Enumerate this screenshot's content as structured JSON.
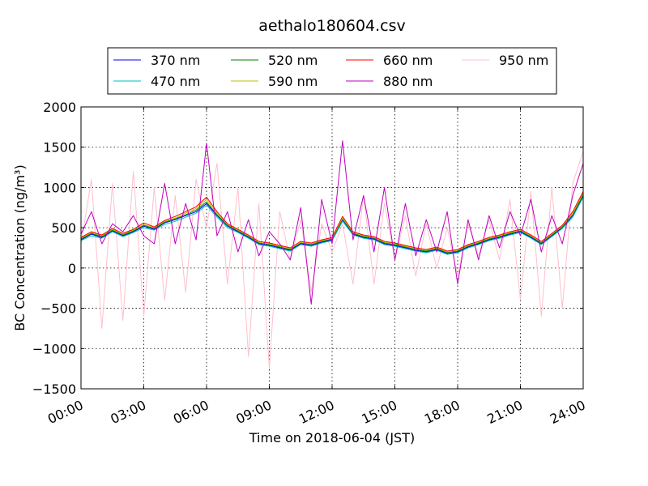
{
  "chart_data": {
    "type": "line",
    "title": "aethalo180604.csv",
    "xlabel": "Time on 2018-06-04 (JST)",
    "ylabel": "BC Concentration (ng/m³)",
    "xlim": [
      "00:00",
      "24:00"
    ],
    "ylim": [
      -1500,
      2000
    ],
    "x_ticks": [
      "00:00",
      "03:00",
      "06:00",
      "09:00",
      "12:00",
      "15:00",
      "18:00",
      "21:00",
      "24:00"
    ],
    "y_ticks": [
      "2000",
      "1500",
      "1000",
      "500",
      "0",
      "−500",
      "−1000",
      "−1500"
    ],
    "grid": true,
    "legend_position": "top-center",
    "x": [
      "00:00",
      "00:30",
      "01:00",
      "01:30",
      "02:00",
      "02:30",
      "03:00",
      "03:30",
      "04:00",
      "04:30",
      "05:00",
      "05:30",
      "06:00",
      "06:30",
      "07:00",
      "07:30",
      "08:00",
      "08:30",
      "09:00",
      "09:30",
      "10:00",
      "10:30",
      "11:00",
      "11:30",
      "12:00",
      "12:30",
      "13:00",
      "13:30",
      "14:00",
      "14:30",
      "15:00",
      "15:30",
      "16:00",
      "16:30",
      "17:00",
      "17:30",
      "18:00",
      "18:30",
      "19:00",
      "19:30",
      "20:00",
      "20:30",
      "21:00",
      "21:30",
      "22:00",
      "22:30",
      "23:00",
      "23:30",
      "24:00"
    ],
    "series": [
      {
        "name": "370 nm",
        "color": "#0000ff",
        "values": [
          350,
          420,
          380,
          460,
          400,
          450,
          520,
          480,
          560,
          600,
          650,
          700,
          800,
          650,
          520,
          450,
          380,
          300,
          280,
          250,
          220,
          300,
          280,
          320,
          350,
          600,
          420,
          380,
          360,
          300,
          280,
          250,
          220,
          200,
          230,
          180,
          200,
          260,
          300,
          350,
          380,
          420,
          450,
          380,
          300,
          400,
          500,
          650,
          900
        ]
      },
      {
        "name": "470 nm",
        "color": "#00bfbf",
        "values": [
          340,
          400,
          370,
          450,
          390,
          440,
          500,
          470,
          540,
          580,
          630,
          680,
          780,
          630,
          500,
          440,
          370,
          290,
          270,
          240,
          210,
          290,
          270,
          310,
          340,
          580,
          410,
          370,
          350,
          290,
          270,
          240,
          210,
          190,
          220,
          170,
          190,
          250,
          290,
          340,
          370,
          410,
          440,
          370,
          290,
          390,
          490,
          630,
          880
        ]
      },
      {
        "name": "520 nm",
        "color": "#008000",
        "values": [
          360,
          430,
          390,
          470,
          410,
          460,
          530,
          490,
          570,
          610,
          660,
          720,
          820,
          660,
          530,
          460,
          390,
          310,
          290,
          260,
          230,
          310,
          290,
          330,
          360,
          610,
          430,
          390,
          370,
          310,
          290,
          260,
          230,
          210,
          240,
          190,
          210,
          270,
          310,
          360,
          390,
          430,
          460,
          390,
          310,
          410,
          510,
          660,
          910
        ]
      },
      {
        "name": "590 nm",
        "color": "#bfbf00",
        "values": [
          370,
          440,
          400,
          480,
          420,
          470,
          540,
          500,
          580,
          620,
          680,
          740,
          850,
          680,
          540,
          470,
          400,
          320,
          300,
          270,
          240,
          320,
          300,
          340,
          370,
          620,
          440,
          400,
          380,
          320,
          300,
          270,
          240,
          220,
          250,
          200,
          220,
          280,
          320,
          370,
          400,
          440,
          470,
          400,
          320,
          420,
          520,
          680,
          930
        ]
      },
      {
        "name": "660 nm",
        "color": "#ff0000",
        "values": [
          380,
          450,
          410,
          490,
          430,
          480,
          560,
          510,
          590,
          640,
          700,
          760,
          880,
          700,
          550,
          480,
          410,
          330,
          310,
          280,
          250,
          330,
          310,
          350,
          380,
          640,
          450,
          410,
          390,
          330,
          310,
          280,
          250,
          230,
          260,
          210,
          230,
          290,
          330,
          380,
          410,
          450,
          480,
          410,
          330,
          430,
          530,
          700,
          950
        ]
      },
      {
        "name": "880 nm",
        "color": "#bf00bf",
        "values": [
          420,
          700,
          300,
          550,
          450,
          650,
          400,
          300,
          1050,
          300,
          800,
          350,
          1550,
          400,
          700,
          200,
          600,
          150,
          450,
          300,
          100,
          750,
          -450,
          850,
          300,
          1580,
          350,
          900,
          200,
          1000,
          100,
          800,
          150,
          600,
          200,
          700,
          -200,
          600,
          100,
          650,
          250,
          700,
          400,
          850,
          200,
          650,
          300,
          900,
          1300
        ]
      },
      {
        "name": "950 nm",
        "color": "#ffc0cb",
        "values": [
          300,
          1100,
          -750,
          1050,
          -650,
          1200,
          -600,
          1000,
          -400,
          900,
          -300,
          1100,
          500,
          1300,
          -200,
          1000,
          -1100,
          800,
          -1250,
          700,
          100,
          600,
          -300,
          550,
          200,
          550,
          -200,
          900,
          -200,
          800,
          100,
          650,
          -100,
          550,
          0,
          500,
          -100,
          550,
          150,
          600,
          100,
          850,
          -400,
          950,
          -600,
          1000,
          -500,
          1050,
          1450
        ]
      }
    ]
  }
}
